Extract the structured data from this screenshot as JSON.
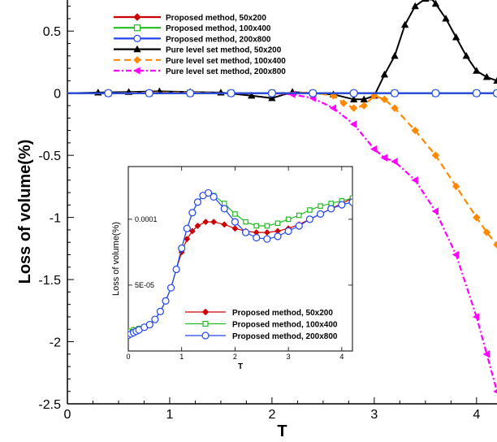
{
  "chart_data": [
    {
      "type": "line",
      "title": "",
      "xlabel": "T",
      "ylabel": "Loss of volume(%)",
      "xlim": [
        0,
        4.2
      ],
      "ylim": [
        -2.5,
        0.75
      ],
      "xticks": [
        0,
        1,
        2,
        3,
        4
      ],
      "yticks": [
        0.5,
        0,
        -0.5,
        -1,
        -1.5,
        -2,
        -2.5
      ],
      "xtick_labels": [
        "0",
        "1",
        "2",
        "3",
        "4"
      ],
      "ytick_labels": [
        "0.5",
        "0",
        "-0.5",
        "-1",
        "-1.5",
        "-2",
        "-2.5"
      ],
      "grid": false,
      "legend_position": "top-left",
      "series": [
        {
          "name": "Proposed method, 50x200",
          "color": "#cc0000",
          "marker": "diamond",
          "dash": "solid",
          "x": [
            0,
            0.4,
            0.8,
            1.2,
            1.6,
            2.0,
            2.4,
            2.8,
            3.2,
            3.6,
            4.0,
            4.2
          ],
          "y": [
            0,
            0,
            0,
            0,
            0,
            0,
            0,
            0,
            0,
            0,
            0,
            0
          ]
        },
        {
          "name": "Proposed method, 100x400",
          "color": "#22bb22",
          "marker": "square",
          "dash": "solid",
          "x": [
            0,
            0.4,
            0.8,
            1.2,
            1.6,
            2.0,
            2.4,
            2.8,
            3.2,
            3.6,
            4.0,
            4.2
          ],
          "y": [
            0,
            0,
            0,
            0,
            0,
            0,
            0,
            0,
            0,
            0,
            0,
            0
          ]
        },
        {
          "name": "Proposed method, 200x800",
          "color": "#2244ee",
          "marker": "circle",
          "dash": "solid",
          "x": [
            0,
            0.4,
            0.8,
            1.2,
            1.6,
            2.0,
            2.4,
            2.8,
            3.2,
            3.6,
            4.0,
            4.2
          ],
          "y": [
            0,
            0,
            0,
            0,
            0,
            0,
            0,
            0,
            0,
            0,
            0,
            0
          ]
        },
        {
          "name": "Pure level set method, 50x200",
          "color": "#000000",
          "marker": "triangle",
          "dash": "solid",
          "x": [
            0,
            0.3,
            0.6,
            0.9,
            1.2,
            1.5,
            1.8,
            2.0,
            2.2,
            2.4,
            2.6,
            2.8,
            2.9,
            3.0,
            3.1,
            3.2,
            3.3,
            3.4,
            3.5,
            3.55,
            3.6,
            3.7,
            3.8,
            3.9,
            4.0,
            4.1,
            4.2
          ],
          "y": [
            0,
            0.005,
            0.01,
            0.015,
            0.01,
            0.005,
            -0.02,
            -0.04,
            0.01,
            0.0,
            -0.01,
            -0.05,
            -0.05,
            -0.02,
            0.15,
            0.3,
            0.55,
            0.7,
            0.76,
            0.77,
            0.72,
            0.6,
            0.45,
            0.3,
            0.18,
            0.13,
            0.1
          ]
        },
        {
          "name": "Pure level set method, 100x400",
          "color": "#ff8800",
          "marker": "diamond",
          "dash": "dashed",
          "x": [
            0,
            0.4,
            0.8,
            1.2,
            1.6,
            2.0,
            2.4,
            2.6,
            2.7,
            2.8,
            2.9,
            3.0,
            3.1,
            3.2,
            3.4,
            3.6,
            3.8,
            4.0,
            4.1,
            4.2
          ],
          "y": [
            0,
            0,
            0.005,
            0.005,
            0,
            0,
            0.005,
            -0.02,
            -0.08,
            -0.12,
            -0.1,
            -0.02,
            -0.05,
            -0.12,
            -0.3,
            -0.5,
            -0.75,
            -1.0,
            -1.12,
            -1.22
          ]
        },
        {
          "name": "Pure level set method, 200x800",
          "color": "#ff00ff",
          "marker": "left-triangle",
          "dash": "dashdot",
          "x": [
            0,
            0.4,
            0.8,
            1.2,
            1.6,
            2.0,
            2.2,
            2.4,
            2.6,
            2.8,
            3.0,
            3.1,
            3.2,
            3.4,
            3.6,
            3.8,
            4.0,
            4.1,
            4.2
          ],
          "y": [
            0,
            0,
            0,
            0,
            0,
            0,
            -0.01,
            -0.04,
            -0.12,
            -0.25,
            -0.45,
            -0.52,
            -0.55,
            -0.7,
            -0.95,
            -1.3,
            -1.8,
            -2.1,
            -2.4
          ]
        }
      ]
    },
    {
      "type": "line",
      "title": "",
      "xlabel": "T",
      "ylabel": "Loss of volume(%)",
      "xlim": [
        0,
        4.2
      ],
      "ylim": [
        0,
        0.00014
      ],
      "xticks": [
        0,
        1,
        2,
        3,
        4
      ],
      "xtick_labels": [
        "0",
        "1",
        "2",
        "3",
        "4"
      ],
      "yticks": [
        5e-05,
        0.0001
      ],
      "ytick_labels": [
        "5E-05",
        "0.0001"
      ],
      "grid": false,
      "legend_position": "bottom-right",
      "series": [
        {
          "name": "Proposed method, 50x200",
          "color": "#cc0000",
          "marker": "diamond",
          "x": [
            0,
            0.1,
            0.2,
            0.3,
            0.4,
            0.5,
            0.6,
            0.7,
            0.8,
            0.9,
            1.0,
            1.1,
            1.2,
            1.3,
            1.45,
            1.6,
            1.8,
            2.0,
            2.2,
            2.4,
            2.6,
            2.8,
            3.0,
            3.2,
            3.4,
            3.6,
            3.8,
            4.0,
            4.2
          ],
          "y": [
            1.5e-05,
            1.6e-05,
            1.7e-05,
            1.8e-05,
            2e-05,
            2.4e-05,
            3e-05,
            3.8e-05,
            4.8e-05,
            6.2e-05,
            7.5e-05,
            8.5e-05,
            9.1e-05,
            9.5e-05,
            9.8e-05,
            9.8e-05,
            9.6e-05,
            9.3e-05,
            9.1e-05,
            9e-05,
            9e-05,
            9.1e-05,
            9.3e-05,
            9.6e-05,
            0.0001,
            0.000104,
            0.000108,
            0.000112,
            0.000116
          ]
        },
        {
          "name": "Proposed method, 100x400",
          "color": "#22bb22",
          "marker": "square",
          "x": [
            0,
            0.1,
            0.2,
            0.3,
            0.4,
            0.5,
            0.6,
            0.7,
            0.8,
            0.9,
            1.0,
            1.1,
            1.2,
            1.3,
            1.4,
            1.5,
            1.6,
            1.8,
            2.0,
            2.2,
            2.4,
            2.6,
            2.8,
            3.0,
            3.2,
            3.4,
            3.6,
            3.8,
            4.0,
            4.2
          ],
          "y": [
            1.5e-05,
            1.6e-05,
            1.7e-05,
            1.8e-05,
            2e-05,
            2.4e-05,
            3e-05,
            3.8e-05,
            4.8e-05,
            6.2e-05,
            7.8e-05,
            9.3e-05,
            0.000105,
            0.000113,
            0.000118,
            0.00012,
            0.000118,
            0.000112,
            0.000104,
            9.8e-05,
            9.5e-05,
            9.5e-05,
            9.7e-05,
            0.0001,
            0.000103,
            0.000107,
            0.00011,
            0.000112,
            0.000114,
            0.000116
          ]
        },
        {
          "name": "Proposed method, 200x800",
          "color": "#2244ee",
          "marker": "circle",
          "x": [
            0,
            0.05,
            0.1,
            0.15,
            0.2,
            0.3,
            0.4,
            0.5,
            0.6,
            0.7,
            0.8,
            0.9,
            1.0,
            1.1,
            1.2,
            1.3,
            1.4,
            1.5,
            1.6,
            1.8,
            2.0,
            2.2,
            2.4,
            2.6,
            2.8,
            3.0,
            3.2,
            3.4,
            3.6,
            3.8,
            4.0,
            4.2
          ],
          "y": [
            1.2e-05,
            1.3e-05,
            1.4e-05,
            1.5e-05,
            1.6e-05,
            1.8e-05,
            2e-05,
            2.4e-05,
            3e-05,
            3.8e-05,
            4.8e-05,
            6.2e-05,
            7.8e-05,
            9.3e-05,
            0.000105,
            0.000113,
            0.000118,
            0.00012,
            0.000117,
            0.000108,
            9.8e-05,
            9e-05,
            8.6e-05,
            8.5e-05,
            8.7e-05,
            9.1e-05,
            9.5e-05,
            0.0001,
            0.000104,
            0.000108,
            0.000111,
            0.000113
          ]
        }
      ]
    }
  ]
}
